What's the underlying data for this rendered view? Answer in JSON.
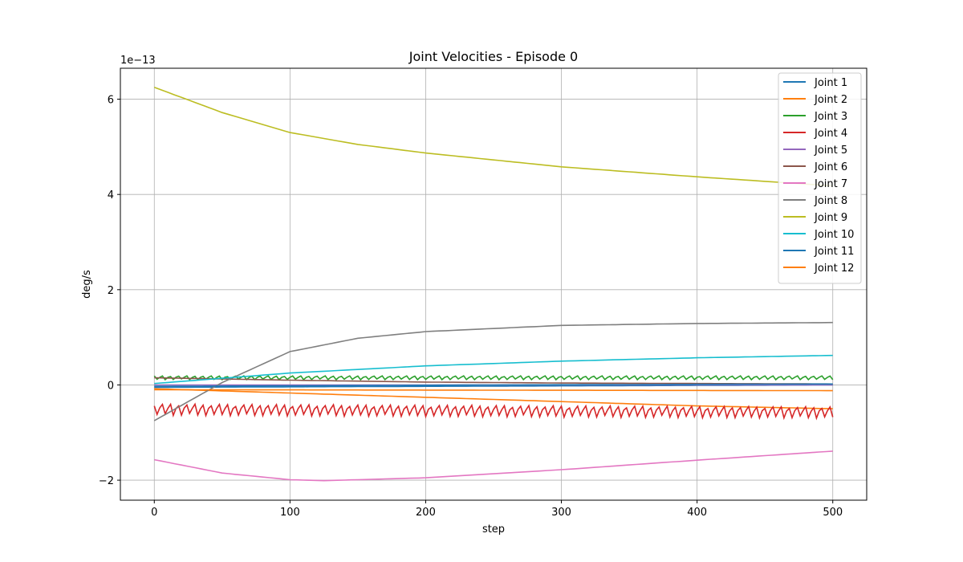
{
  "chart_data": {
    "type": "line",
    "title": "Joint Velocities - Episode 0",
    "xlabel": "step",
    "ylabel": "deg/s",
    "y_offset_label": "1e−13",
    "xlim": [
      -25,
      525
    ],
    "ylim": [
      -2.42,
      6.65
    ],
    "xticks": [
      0,
      100,
      200,
      300,
      400,
      500
    ],
    "yticks": [
      -2,
      0,
      2,
      4,
      6
    ],
    "grid": true,
    "legend_position": "top-right",
    "series": [
      {
        "name": "Joint 1",
        "color": "#1f77b4",
        "kind": "smooth",
        "points": [
          [
            0,
            -0.05
          ],
          [
            100,
            -0.04
          ],
          [
            200,
            -0.03
          ],
          [
            300,
            -0.02
          ],
          [
            400,
            -0.01
          ],
          [
            500,
            0.0
          ]
        ]
      },
      {
        "name": "Joint 2",
        "color": "#ff7f0e",
        "kind": "smooth",
        "points": [
          [
            0,
            -0.08
          ],
          [
            100,
            -0.17
          ],
          [
            200,
            -0.26
          ],
          [
            300,
            -0.35
          ],
          [
            400,
            -0.44
          ],
          [
            500,
            -0.5
          ]
        ]
      },
      {
        "name": "Joint 3",
        "color": "#2ca02c",
        "kind": "noisy",
        "base": 0.15,
        "amp": 0.04,
        "points": [
          [
            0,
            0.15
          ],
          [
            500,
            0.15
          ]
        ]
      },
      {
        "name": "Joint 4",
        "color": "#d62728",
        "kind": "noisy",
        "base": -0.58,
        "amp": 0.12,
        "points": [
          [
            0,
            -0.52
          ],
          [
            500,
            -0.58
          ]
        ]
      },
      {
        "name": "Joint 5",
        "color": "#9467bd",
        "kind": "smooth",
        "points": [
          [
            0,
            0.0
          ],
          [
            250,
            0.0
          ],
          [
            500,
            0.0
          ]
        ]
      },
      {
        "name": "Joint 6",
        "color": "#8c564b",
        "kind": "smooth",
        "points": [
          [
            0,
            0.15
          ],
          [
            100,
            0.1
          ],
          [
            200,
            0.06
          ],
          [
            300,
            0.04
          ],
          [
            400,
            0.03
          ],
          [
            500,
            0.02
          ]
        ]
      },
      {
        "name": "Joint 7",
        "color": "#e377c2",
        "kind": "smooth",
        "points": [
          [
            0,
            -1.57
          ],
          [
            50,
            -1.85
          ],
          [
            100,
            -1.99
          ],
          [
            125,
            -2.01
          ],
          [
            200,
            -1.95
          ],
          [
            300,
            -1.78
          ],
          [
            400,
            -1.58
          ],
          [
            500,
            -1.39
          ]
        ]
      },
      {
        "name": "Joint 8",
        "color": "#7f7f7f",
        "kind": "smooth",
        "points": [
          [
            0,
            -0.75
          ],
          [
            50,
            0.05
          ],
          [
            100,
            0.7
          ],
          [
            150,
            0.98
          ],
          [
            200,
            1.12
          ],
          [
            300,
            1.25
          ],
          [
            400,
            1.29
          ],
          [
            500,
            1.31
          ]
        ]
      },
      {
        "name": "Joint 9",
        "color": "#bcbd22",
        "kind": "smooth",
        "points": [
          [
            0,
            6.25
          ],
          [
            50,
            5.72
          ],
          [
            100,
            5.3
          ],
          [
            150,
            5.05
          ],
          [
            200,
            4.87
          ],
          [
            300,
            4.58
          ],
          [
            400,
            4.37
          ],
          [
            500,
            4.18
          ]
        ]
      },
      {
        "name": "Joint 10",
        "color": "#17becf",
        "kind": "smooth",
        "points": [
          [
            0,
            0.03
          ],
          [
            100,
            0.25
          ],
          [
            200,
            0.4
          ],
          [
            300,
            0.5
          ],
          [
            400,
            0.57
          ],
          [
            500,
            0.62
          ]
        ]
      },
      {
        "name": "Joint 11",
        "color": "#1f77b4",
        "kind": "smooth",
        "points": [
          [
            0,
            -0.03
          ],
          [
            250,
            0.0
          ],
          [
            500,
            0.02
          ]
        ]
      },
      {
        "name": "Joint 12",
        "color": "#ff7f0e",
        "kind": "smooth",
        "points": [
          [
            0,
            -0.1
          ],
          [
            250,
            -0.11
          ],
          [
            500,
            -0.12
          ]
        ]
      }
    ]
  }
}
